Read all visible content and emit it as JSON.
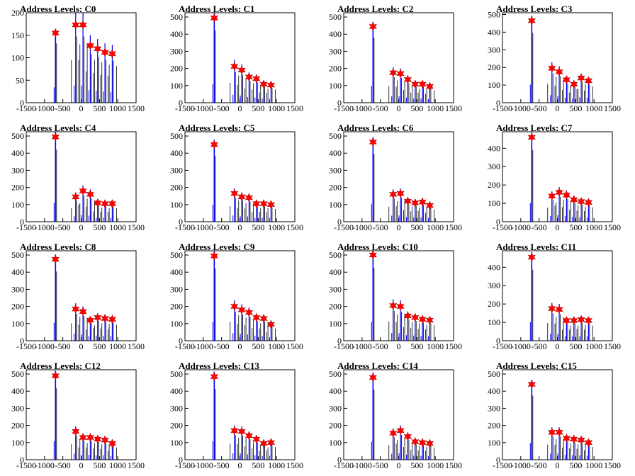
{
  "figure": {
    "x_ticks": [
      -1500,
      -1000,
      -500,
      0,
      500,
      1000,
      1500
    ],
    "colors": {
      "histogram": "#0000ff",
      "histogram_dark": "#000000",
      "marker": "#ff0000",
      "axis": "#000000"
    },
    "marker_icon": "star-marker"
  },
  "chart_data": [
    {
      "type": "bar",
      "title": "Address Levels: C0",
      "xlim": [
        -1500,
        1500
      ],
      "ylim": [
        0,
        200
      ],
      "yticks": [
        0,
        50,
        100,
        150,
        200
      ],
      "peaks_x": [
        -700,
        -150,
        50,
        250,
        450,
        650,
        850
      ],
      "peaks_y": [
        155,
        173,
        173,
        127,
        120,
        112,
        109
      ]
    },
    {
      "type": "bar",
      "title": "Address Levels: C1",
      "xlim": [
        -1500,
        1500
      ],
      "ylim": [
        0,
        525
      ],
      "yticks": [
        0,
        100,
        200,
        300,
        400,
        500
      ],
      "peaks_x": [
        -700,
        -150,
        50,
        250,
        450,
        650,
        850
      ],
      "peaks_y": [
        495,
        212,
        190,
        150,
        140,
        108,
        103
      ]
    },
    {
      "type": "bar",
      "title": "Address Levels: C2",
      "xlim": [
        -1500,
        1500
      ],
      "ylim": [
        0,
        525
      ],
      "yticks": [
        0,
        100,
        200,
        300,
        400,
        500
      ],
      "peaks_x": [
        -700,
        -150,
        50,
        250,
        450,
        650,
        850
      ],
      "peaks_y": [
        445,
        175,
        170,
        135,
        108,
        108,
        95
      ]
    },
    {
      "type": "bar",
      "title": "Address Levels: C3",
      "xlim": [
        -1500,
        1500
      ],
      "ylim": [
        0,
        510
      ],
      "yticks": [
        0,
        100,
        200,
        300,
        400,
        500
      ],
      "peaks_x": [
        -700,
        -150,
        50,
        250,
        450,
        650,
        850
      ],
      "peaks_y": [
        465,
        195,
        175,
        130,
        105,
        140,
        125
      ]
    },
    {
      "type": "bar",
      "title": "Address Levels: C4",
      "xlim": [
        -1500,
        1500
      ],
      "ylim": [
        0,
        525
      ],
      "yticks": [
        0,
        100,
        200,
        300,
        400,
        500
      ],
      "peaks_x": [
        -700,
        -150,
        50,
        250,
        450,
        650,
        850
      ],
      "peaks_y": [
        495,
        145,
        180,
        160,
        110,
        105,
        105
      ]
    },
    {
      "type": "bar",
      "title": "Address Levels: C5",
      "xlim": [
        -1500,
        1500
      ],
      "ylim": [
        0,
        525
      ],
      "yticks": [
        0,
        100,
        200,
        300,
        400,
        500
      ],
      "peaks_x": [
        -700,
        -150,
        50,
        250,
        450,
        650,
        850
      ],
      "peaks_y": [
        450,
        165,
        145,
        140,
        105,
        105,
        100
      ]
    },
    {
      "type": "bar",
      "title": "Address Levels: C6",
      "xlim": [
        -1500,
        1500
      ],
      "ylim": [
        0,
        525
      ],
      "yticks": [
        0,
        100,
        200,
        300,
        400,
        500
      ],
      "peaks_x": [
        -700,
        -150,
        50,
        250,
        450,
        650,
        850
      ],
      "peaks_y": [
        465,
        160,
        165,
        120,
        110,
        115,
        95
      ]
    },
    {
      "type": "bar",
      "title": "Address Levels: C7",
      "xlim": [
        -1500,
        1500
      ],
      "ylim": [
        0,
        490
      ],
      "yticks": [
        0,
        100,
        200,
        300,
        400
      ],
      "peaks_x": [
        -700,
        -150,
        50,
        250,
        450,
        650,
        850
      ],
      "peaks_y": [
        460,
        140,
        160,
        145,
        120,
        110,
        105
      ]
    },
    {
      "type": "bar",
      "title": "Address Levels: C8",
      "xlim": [
        -1500,
        1500
      ],
      "ylim": [
        0,
        525
      ],
      "yticks": [
        0,
        100,
        200,
        300,
        400,
        500
      ],
      "peaks_x": [
        -700,
        -150,
        50,
        250,
        450,
        650,
        850
      ],
      "peaks_y": [
        475,
        185,
        170,
        120,
        135,
        130,
        125
      ]
    },
    {
      "type": "bar",
      "title": "Address Levels: C9",
      "xlim": [
        -1500,
        1500
      ],
      "ylim": [
        0,
        525
      ],
      "yticks": [
        0,
        100,
        200,
        300,
        400,
        500
      ],
      "peaks_x": [
        -700,
        -150,
        50,
        250,
        450,
        650,
        850
      ],
      "peaks_y": [
        495,
        200,
        180,
        165,
        135,
        130,
        95
      ]
    },
    {
      "type": "bar",
      "title": "Address Levels: C10",
      "xlim": [
        -1500,
        1500
      ],
      "ylim": [
        0,
        525
      ],
      "yticks": [
        0,
        100,
        200,
        300,
        400,
        500
      ],
      "peaks_x": [
        -700,
        -150,
        50,
        250,
        450,
        650,
        850
      ],
      "peaks_y": [
        500,
        205,
        200,
        145,
        135,
        125,
        120
      ]
    },
    {
      "type": "bar",
      "title": "Address Levels: C11",
      "xlim": [
        -1500,
        1500
      ],
      "ylim": [
        0,
        490
      ],
      "yticks": [
        0,
        100,
        200,
        300,
        400
      ],
      "peaks_x": [
        -700,
        -150,
        50,
        250,
        450,
        650,
        850
      ],
      "peaks_y": [
        455,
        175,
        170,
        110,
        110,
        115,
        110
      ]
    },
    {
      "type": "bar",
      "title": "Address Levels: C12",
      "xlim": [
        -1500,
        1500
      ],
      "ylim": [
        0,
        525
      ],
      "yticks": [
        0,
        100,
        200,
        300,
        400,
        500
      ],
      "peaks_x": [
        -700,
        -150,
        50,
        250,
        450,
        650,
        850
      ],
      "peaks_y": [
        490,
        165,
        130,
        130,
        120,
        115,
        95
      ]
    },
    {
      "type": "bar",
      "title": "Address Levels: C13",
      "xlim": [
        -1500,
        1500
      ],
      "ylim": [
        0,
        525
      ],
      "yticks": [
        0,
        100,
        200,
        300,
        400,
        500
      ],
      "peaks_x": [
        -700,
        -150,
        50,
        250,
        450,
        650,
        850
      ],
      "peaks_y": [
        485,
        170,
        165,
        140,
        120,
        95,
        100
      ]
    },
    {
      "type": "bar",
      "title": "Address Levels: C14",
      "xlim": [
        -1500,
        1500
      ],
      "ylim": [
        0,
        525
      ],
      "yticks": [
        0,
        100,
        200,
        300,
        400,
        500
      ],
      "peaks_x": [
        -700,
        -150,
        50,
        250,
        450,
        650,
        850
      ],
      "peaks_y": [
        480,
        155,
        170,
        135,
        105,
        100,
        95
      ]
    },
    {
      "type": "bar",
      "title": "Address Levels: C15",
      "xlim": [
        -1500,
        1500
      ],
      "ylim": [
        0,
        525
      ],
      "yticks": [
        0,
        100,
        200,
        300,
        400,
        500
      ],
      "peaks_x": [
        -700,
        -150,
        50,
        250,
        450,
        650,
        850
      ],
      "peaks_y": [
        440,
        160,
        160,
        125,
        120,
        115,
        100
      ]
    }
  ]
}
